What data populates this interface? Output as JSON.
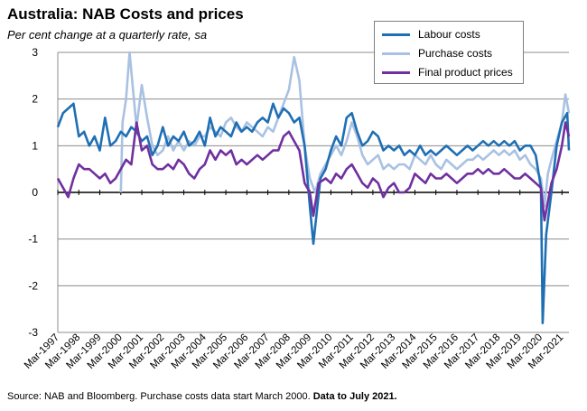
{
  "chart_data": {
    "type": "line",
    "title": "Australia: NAB Costs and prices",
    "subtitle": "Per cent change at a quarterly rate, sa",
    "ylim": [
      -3,
      3
    ],
    "yticks": [
      -3,
      -2,
      -1,
      0,
      1,
      2,
      3
    ],
    "x_start": "1997-03",
    "x_end": "2021-07",
    "x_tick_labels": [
      "Mar-1997",
      "Mar-1998",
      "Mar-1999",
      "Mar-2000",
      "Mar-2001",
      "Mar-2002",
      "Mar-2003",
      "Mar-2004",
      "Mar-2005",
      "Mar-2006",
      "Mar-2007",
      "Mar-2008",
      "Mar-2009",
      "Mar-2010",
      "Mar-2011",
      "Mar-2012",
      "Mar-2013",
      "Mar-2014",
      "Mar-2015",
      "Mar-2016",
      "Mar-2017",
      "Mar-2018",
      "Mar-2019",
      "Mar-2020",
      "Mar-2021"
    ],
    "grid": true,
    "legend_position": "top-right",
    "series": [
      {
        "name": "Labour costs",
        "color": "#1f6fb4",
        "points": [
          [
            "1997-03",
            1.4
          ],
          [
            "1997-06",
            1.7
          ],
          [
            "1997-09",
            1.8
          ],
          [
            "1997-12",
            1.9
          ],
          [
            "1998-03",
            1.2
          ],
          [
            "1998-06",
            1.3
          ],
          [
            "1998-09",
            1.0
          ],
          [
            "1998-12",
            1.2
          ],
          [
            "1999-03",
            0.9
          ],
          [
            "1999-06",
            1.6
          ],
          [
            "1999-09",
            1.0
          ],
          [
            "1999-12",
            1.1
          ],
          [
            "2000-03",
            1.3
          ],
          [
            "2000-06",
            1.2
          ],
          [
            "2000-09",
            1.4
          ],
          [
            "2000-12",
            1.3
          ],
          [
            "2001-03",
            1.1
          ],
          [
            "2001-06",
            1.2
          ],
          [
            "2001-09",
            0.8
          ],
          [
            "2001-12",
            1.0
          ],
          [
            "2002-03",
            1.4
          ],
          [
            "2002-06",
            1.0
          ],
          [
            "2002-09",
            1.2
          ],
          [
            "2002-12",
            1.1
          ],
          [
            "2003-03",
            1.3
          ],
          [
            "2003-06",
            1.0
          ],
          [
            "2003-09",
            1.1
          ],
          [
            "2003-12",
            1.3
          ],
          [
            "2004-03",
            1.0
          ],
          [
            "2004-06",
            1.6
          ],
          [
            "2004-09",
            1.2
          ],
          [
            "2004-12",
            1.4
          ],
          [
            "2005-03",
            1.3
          ],
          [
            "2005-06",
            1.2
          ],
          [
            "2005-09",
            1.5
          ],
          [
            "2005-12",
            1.3
          ],
          [
            "2006-03",
            1.4
          ],
          [
            "2006-06",
            1.3
          ],
          [
            "2006-09",
            1.5
          ],
          [
            "2006-12",
            1.6
          ],
          [
            "2007-03",
            1.5
          ],
          [
            "2007-06",
            1.9
          ],
          [
            "2007-09",
            1.6
          ],
          [
            "2007-12",
            1.8
          ],
          [
            "2008-03",
            1.7
          ],
          [
            "2008-06",
            1.5
          ],
          [
            "2008-09",
            1.6
          ],
          [
            "2008-12",
            1.0
          ],
          [
            "2009-03",
            -0.3
          ],
          [
            "2009-05",
            -1.1
          ],
          [
            "2009-09",
            0.3
          ],
          [
            "2009-12",
            0.5
          ],
          [
            "2010-03",
            0.9
          ],
          [
            "2010-06",
            1.2
          ],
          [
            "2010-09",
            1.0
          ],
          [
            "2010-12",
            1.6
          ],
          [
            "2011-03",
            1.7
          ],
          [
            "2011-06",
            1.3
          ],
          [
            "2011-09",
            1.0
          ],
          [
            "2011-12",
            1.1
          ],
          [
            "2012-03",
            1.3
          ],
          [
            "2012-06",
            1.2
          ],
          [
            "2012-09",
            0.9
          ],
          [
            "2012-12",
            1.0
          ],
          [
            "2013-03",
            0.9
          ],
          [
            "2013-06",
            1.0
          ],
          [
            "2013-09",
            0.8
          ],
          [
            "2013-12",
            0.9
          ],
          [
            "2014-03",
            0.8
          ],
          [
            "2014-06",
            1.0
          ],
          [
            "2014-09",
            0.8
          ],
          [
            "2014-12",
            0.9
          ],
          [
            "2015-03",
            0.8
          ],
          [
            "2015-06",
            0.9
          ],
          [
            "2015-09",
            1.0
          ],
          [
            "2015-12",
            0.9
          ],
          [
            "2016-03",
            0.8
          ],
          [
            "2016-06",
            0.9
          ],
          [
            "2016-09",
            1.0
          ],
          [
            "2016-12",
            0.9
          ],
          [
            "2017-03",
            1.0
          ],
          [
            "2017-06",
            1.1
          ],
          [
            "2017-09",
            1.0
          ],
          [
            "2017-12",
            1.1
          ],
          [
            "2018-03",
            1.0
          ],
          [
            "2018-06",
            1.1
          ],
          [
            "2018-09",
            1.0
          ],
          [
            "2018-12",
            1.1
          ],
          [
            "2019-03",
            0.9
          ],
          [
            "2019-06",
            1.0
          ],
          [
            "2019-09",
            1.0
          ],
          [
            "2019-12",
            0.8
          ],
          [
            "2020-03",
            0.1
          ],
          [
            "2020-04",
            -2.8
          ],
          [
            "2020-06",
            -0.9
          ],
          [
            "2020-09",
            0.0
          ],
          [
            "2020-12",
            1.0
          ],
          [
            "2021-03",
            1.5
          ],
          [
            "2021-06",
            1.7
          ],
          [
            "2021-07",
            0.9
          ]
        ]
      },
      {
        "name": "Purchase costs",
        "color": "#a9c1e2",
        "points": [
          [
            "2000-03",
            0.0
          ],
          [
            "2000-04",
            1.5
          ],
          [
            "2000-06",
            2.0
          ],
          [
            "2000-08",
            3.0
          ],
          [
            "2000-10",
            2.2
          ],
          [
            "2000-12",
            1.4
          ],
          [
            "2001-03",
            2.3
          ],
          [
            "2001-06",
            1.6
          ],
          [
            "2001-09",
            1.0
          ],
          [
            "2001-12",
            0.8
          ],
          [
            "2002-03",
            0.9
          ],
          [
            "2002-06",
            1.2
          ],
          [
            "2002-09",
            0.9
          ],
          [
            "2002-12",
            1.1
          ],
          [
            "2003-03",
            0.9
          ],
          [
            "2003-06",
            1.1
          ],
          [
            "2003-09",
            1.0
          ],
          [
            "2003-12",
            1.2
          ],
          [
            "2004-03",
            1.2
          ],
          [
            "2004-06",
            1.4
          ],
          [
            "2004-09",
            1.3
          ],
          [
            "2004-12",
            1.2
          ],
          [
            "2005-03",
            1.5
          ],
          [
            "2005-06",
            1.6
          ],
          [
            "2005-09",
            1.4
          ],
          [
            "2005-12",
            1.3
          ],
          [
            "2006-03",
            1.5
          ],
          [
            "2006-06",
            1.4
          ],
          [
            "2006-09",
            1.3
          ],
          [
            "2006-12",
            1.2
          ],
          [
            "2007-03",
            1.4
          ],
          [
            "2007-06",
            1.3
          ],
          [
            "2007-09",
            1.6
          ],
          [
            "2007-12",
            1.9
          ],
          [
            "2008-03",
            2.2
          ],
          [
            "2008-06",
            2.9
          ],
          [
            "2008-09",
            2.4
          ],
          [
            "2008-12",
            1.0
          ],
          [
            "2009-03",
            0.3
          ],
          [
            "2009-06",
            0.0
          ],
          [
            "2009-09",
            0.4
          ],
          [
            "2009-12",
            0.6
          ],
          [
            "2010-03",
            0.8
          ],
          [
            "2010-06",
            1.0
          ],
          [
            "2010-09",
            0.8
          ],
          [
            "2010-12",
            1.1
          ],
          [
            "2011-03",
            1.5
          ],
          [
            "2011-06",
            1.2
          ],
          [
            "2011-09",
            0.8
          ],
          [
            "2011-12",
            0.6
          ],
          [
            "2012-03",
            0.7
          ],
          [
            "2012-06",
            0.8
          ],
          [
            "2012-09",
            0.5
          ],
          [
            "2012-12",
            0.6
          ],
          [
            "2013-03",
            0.5
          ],
          [
            "2013-06",
            0.6
          ],
          [
            "2013-09",
            0.6
          ],
          [
            "2013-12",
            0.5
          ],
          [
            "2014-03",
            0.8
          ],
          [
            "2014-06",
            0.7
          ],
          [
            "2014-09",
            0.6
          ],
          [
            "2014-12",
            0.8
          ],
          [
            "2015-03",
            0.6
          ],
          [
            "2015-06",
            0.5
          ],
          [
            "2015-09",
            0.7
          ],
          [
            "2015-12",
            0.6
          ],
          [
            "2016-03",
            0.5
          ],
          [
            "2016-06",
            0.6
          ],
          [
            "2016-09",
            0.7
          ],
          [
            "2016-12",
            0.7
          ],
          [
            "2017-03",
            0.8
          ],
          [
            "2017-06",
            0.7
          ],
          [
            "2017-09",
            0.8
          ],
          [
            "2017-12",
            0.9
          ],
          [
            "2018-03",
            0.8
          ],
          [
            "2018-06",
            0.9
          ],
          [
            "2018-09",
            0.8
          ],
          [
            "2018-12",
            0.9
          ],
          [
            "2019-03",
            0.7
          ],
          [
            "2019-06",
            0.8
          ],
          [
            "2019-09",
            0.6
          ],
          [
            "2019-12",
            0.5
          ],
          [
            "2020-03",
            0.3
          ],
          [
            "2020-05",
            -0.3
          ],
          [
            "2020-07",
            0.4
          ],
          [
            "2020-09",
            0.7
          ],
          [
            "2020-12",
            1.1
          ],
          [
            "2021-03",
            1.5
          ],
          [
            "2021-05",
            2.1
          ],
          [
            "2021-07",
            1.7
          ]
        ]
      },
      {
        "name": "Final product prices",
        "color": "#7030a0",
        "points": [
          [
            "1997-03",
            0.3
          ],
          [
            "1997-06",
            0.1
          ],
          [
            "1997-09",
            -0.1
          ],
          [
            "1997-12",
            0.3
          ],
          [
            "1998-03",
            0.6
          ],
          [
            "1998-06",
            0.5
          ],
          [
            "1998-09",
            0.5
          ],
          [
            "1998-12",
            0.4
          ],
          [
            "1999-03",
            0.3
          ],
          [
            "1999-06",
            0.4
          ],
          [
            "1999-09",
            0.2
          ],
          [
            "1999-12",
            0.3
          ],
          [
            "2000-03",
            0.5
          ],
          [
            "2000-06",
            0.7
          ],
          [
            "2000-09",
            0.6
          ],
          [
            "2000-12",
            1.5
          ],
          [
            "2001-03",
            0.9
          ],
          [
            "2001-06",
            1.0
          ],
          [
            "2001-09",
            0.6
          ],
          [
            "2001-12",
            0.5
          ],
          [
            "2002-03",
            0.5
          ],
          [
            "2002-06",
            0.6
          ],
          [
            "2002-09",
            0.5
          ],
          [
            "2002-12",
            0.7
          ],
          [
            "2003-03",
            0.6
          ],
          [
            "2003-06",
            0.4
          ],
          [
            "2003-09",
            0.3
          ],
          [
            "2003-12",
            0.5
          ],
          [
            "2004-03",
            0.6
          ],
          [
            "2004-06",
            0.9
          ],
          [
            "2004-09",
            0.7
          ],
          [
            "2004-12",
            0.9
          ],
          [
            "2005-03",
            0.8
          ],
          [
            "2005-06",
            0.9
          ],
          [
            "2005-09",
            0.6
          ],
          [
            "2005-12",
            0.7
          ],
          [
            "2006-03",
            0.6
          ],
          [
            "2006-06",
            0.7
          ],
          [
            "2006-09",
            0.8
          ],
          [
            "2006-12",
            0.7
          ],
          [
            "2007-03",
            0.8
          ],
          [
            "2007-06",
            0.9
          ],
          [
            "2007-09",
            0.9
          ],
          [
            "2007-12",
            1.2
          ],
          [
            "2008-03",
            1.3
          ],
          [
            "2008-06",
            1.1
          ],
          [
            "2008-09",
            0.9
          ],
          [
            "2008-12",
            0.2
          ],
          [
            "2009-03",
            0.0
          ],
          [
            "2009-05",
            -0.5
          ],
          [
            "2009-08",
            0.2
          ],
          [
            "2009-12",
            0.3
          ],
          [
            "2010-03",
            0.2
          ],
          [
            "2010-06",
            0.4
          ],
          [
            "2010-09",
            0.3
          ],
          [
            "2010-12",
            0.5
          ],
          [
            "2011-03",
            0.6
          ],
          [
            "2011-06",
            0.4
          ],
          [
            "2011-09",
            0.2
          ],
          [
            "2011-12",
            0.1
          ],
          [
            "2012-03",
            0.3
          ],
          [
            "2012-06",
            0.2
          ],
          [
            "2012-09",
            -0.1
          ],
          [
            "2012-12",
            0.1
          ],
          [
            "2013-03",
            0.2
          ],
          [
            "2013-06",
            0.0
          ],
          [
            "2013-09",
            0.0
          ],
          [
            "2013-12",
            0.1
          ],
          [
            "2014-03",
            0.4
          ],
          [
            "2014-06",
            0.3
          ],
          [
            "2014-09",
            0.2
          ],
          [
            "2014-12",
            0.4
          ],
          [
            "2015-03",
            0.3
          ],
          [
            "2015-06",
            0.3
          ],
          [
            "2015-09",
            0.4
          ],
          [
            "2015-12",
            0.3
          ],
          [
            "2016-03",
            0.2
          ],
          [
            "2016-06",
            0.3
          ],
          [
            "2016-09",
            0.4
          ],
          [
            "2016-12",
            0.4
          ],
          [
            "2017-03",
            0.5
          ],
          [
            "2017-06",
            0.4
          ],
          [
            "2017-09",
            0.5
          ],
          [
            "2017-12",
            0.4
          ],
          [
            "2018-03",
            0.4
          ],
          [
            "2018-06",
            0.5
          ],
          [
            "2018-09",
            0.4
          ],
          [
            "2018-12",
            0.3
          ],
          [
            "2019-03",
            0.3
          ],
          [
            "2019-06",
            0.4
          ],
          [
            "2019-09",
            0.3
          ],
          [
            "2019-12",
            0.2
          ],
          [
            "2020-03",
            0.1
          ],
          [
            "2020-05",
            -0.6
          ],
          [
            "2020-07",
            -0.2
          ],
          [
            "2020-09",
            0.2
          ],
          [
            "2020-12",
            0.5
          ],
          [
            "2021-03",
            1.0
          ],
          [
            "2021-05",
            1.5
          ],
          [
            "2021-07",
            1.2
          ]
        ]
      }
    ]
  },
  "source": {
    "text": "Source: NAB and Bloomberg.  Purchase costs data start March 2000.",
    "bold": "Data to July 2021."
  }
}
